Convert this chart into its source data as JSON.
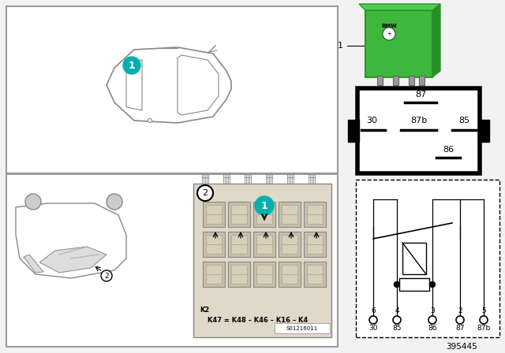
{
  "bg_color": "#f2f2f2",
  "white": "#ffffff",
  "black": "#000000",
  "relay_green": "#3db53d",
  "teal": "#00b0b0",
  "part_number": "395445",
  "s_number": "S01216011",
  "relay_pins_top": [
    "87",
    "87b",
    "85"
  ],
  "relay_pin_left": "30",
  "relay_pin_bottom": "86",
  "term_nums": [
    "6",
    "4",
    "3",
    "2",
    "5"
  ],
  "term_names": [
    "30",
    "85",
    "86",
    "87",
    "87b"
  ]
}
